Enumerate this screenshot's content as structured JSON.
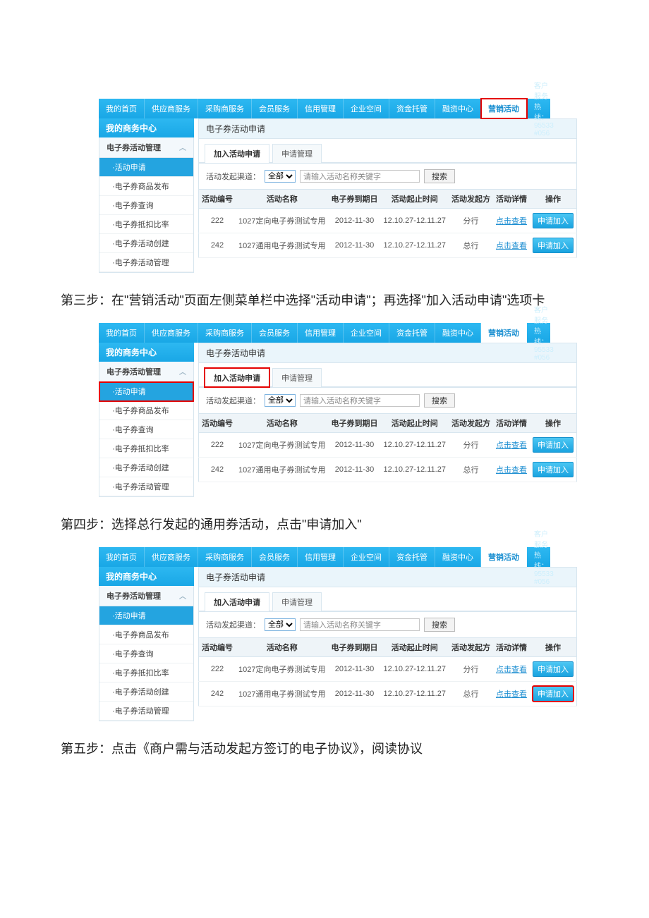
{
  "nav": {
    "items": [
      "我的首页",
      "供应商服务",
      "采购商服务",
      "会员服务",
      "信用管理",
      "企业空间",
      "资金托管",
      "融资中心",
      "营销活动"
    ],
    "activeIndex": 8,
    "hotline": "客户服务热线：95533 #056"
  },
  "sidebar": {
    "title": "我的商务中心",
    "group": "电子券活动管理",
    "items": [
      "·活动申请",
      "·电子券商品发布",
      "·电子券查询",
      "·电子券抵扣比率",
      "·电子券活动创建",
      "·电子券活动管理"
    ],
    "activeIndex": 0
  },
  "content": {
    "title": "电子券活动申请",
    "tabs": [
      "加入活动申请",
      "申请管理"
    ],
    "activeTab": 0,
    "filterLabel": "活动发起渠道：",
    "filterValue": "全部",
    "searchPlaceholder": "请输入活动名称关键字",
    "searchBtn": "搜索",
    "columns": [
      "活动编号",
      "活动名称",
      "电子券到期日",
      "活动起止时间",
      "活动发起方",
      "活动详情",
      "操作"
    ],
    "rows": [
      {
        "id": "222",
        "name": "1027定向电子券测试专用",
        "expire": "2012-11-30",
        "period": "12.10.27-12.11.27",
        "sponsor": "分行"
      },
      {
        "id": "242",
        "name": "1027通用电子券测试专用",
        "expire": "2012-11-30",
        "period": "12.10.27-12.11.27",
        "sponsor": "总行"
      }
    ],
    "viewText": "点击查看",
    "joinText": "申请加入"
  },
  "steps": {
    "s3": "第三步：在\"营销活动\"页面左侧菜单栏中选择\"活动申请\"；再选择\"加入活动申请\"选项卡",
    "s4": "第四步：选择总行发起的通用券活动，点击\"申请加入\"",
    "s5": "第五步：点击《商户需与活动发起方签订的电子协议》，阅读协议"
  },
  "highlights": {
    "shot1": {
      "navActiveBoxed": true,
      "sideItemBoxed": false,
      "tabBoxed": false,
      "joinBoxedRow": -1
    },
    "shot2": {
      "navActiveBoxed": false,
      "sideItemBoxed": true,
      "tabBoxed": true,
      "joinBoxedRow": -1
    },
    "shot3": {
      "navActiveBoxed": false,
      "sideItemBoxed": false,
      "tabBoxed": false,
      "joinBoxedRow": 1
    }
  }
}
